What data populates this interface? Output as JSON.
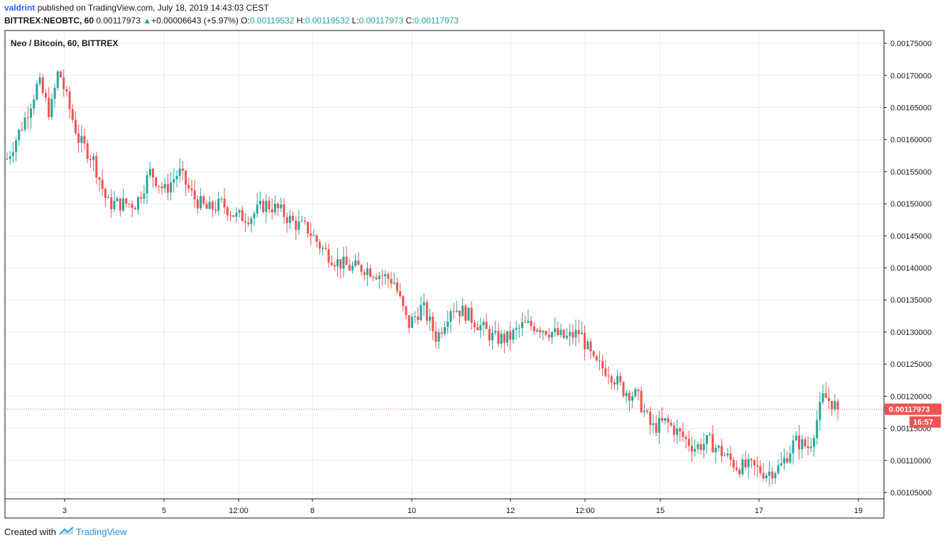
{
  "header": {
    "user": "valdrint",
    "published_text": "published on TradingView.com, July 18, 2019 14:43:03 CEST",
    "symbol": "BITTREX:NEOBTC, 60",
    "last": "0.00117973",
    "arrow": "▲",
    "change": "+0.00006643 (+5.97%)",
    "o_label": "O:",
    "o_value": "0.00119532",
    "h_label": "H:",
    "h_value": "0.00119532",
    "l_label": "L:",
    "l_value": "0.00117973",
    "c_label": "C:",
    "c_value": "0.00117973"
  },
  "footer": {
    "created_with": "Created with",
    "brand": "TradingView"
  },
  "colors": {
    "up": "#26a69a",
    "down": "#ef5350",
    "grid": "#e7eef5",
    "axis": "#131722",
    "price_tag": "#ef5350"
  },
  "chart_data": {
    "type": "candlestick",
    "title": "Neo / Bitcoin, 60, BITTREX",
    "interval": "60",
    "exchange": "BITTREX",
    "ylim": [
      0.00104,
      0.00177
    ],
    "y_ticks": [
      "0.00175000",
      "0.00170000",
      "0.00165000",
      "0.00160000",
      "0.00155000",
      "0.00150000",
      "0.00145000",
      "0.00140000",
      "0.00135000",
      "0.00130000",
      "0.00125000",
      "0.00120000",
      "0.00115000",
      "0.00110000",
      "0.00105000"
    ],
    "x_ticks": [
      "3",
      "5",
      "12:00",
      "8",
      "10",
      "12",
      "12:00",
      "15",
      "17",
      "19"
    ],
    "last_price": "0.00117973",
    "countdown": "16:57",
    "price_path": [
      [
        0,
        0.00157
      ],
      [
        1.2,
        0.00163
      ],
      [
        2.2,
        0.00169
      ],
      [
        3.0,
        0.00164
      ],
      [
        3.6,
        0.00171
      ],
      [
        4.2,
        0.00166
      ],
      [
        5.0,
        0.0016
      ],
      [
        6.0,
        0.00157
      ],
      [
        7.0,
        0.0015
      ],
      [
        8.0,
        0.0015
      ],
      [
        9.0,
        0.0015
      ],
      [
        10.0,
        0.00155
      ],
      [
        11.0,
        0.00152
      ],
      [
        12.0,
        0.00155
      ],
      [
        13.0,
        0.00151
      ],
      [
        14.0,
        0.00149
      ],
      [
        15.0,
        0.0015
      ],
      [
        16.0,
        0.00148
      ],
      [
        17.0,
        0.00148
      ],
      [
        18.0,
        0.0015
      ],
      [
        19.0,
        0.00149
      ],
      [
        20.0,
        0.00147
      ],
      [
        21.0,
        0.00146
      ],
      [
        22.0,
        0.00143
      ],
      [
        23.0,
        0.00141
      ],
      [
        24.0,
        0.0014
      ],
      [
        25.0,
        0.0014
      ],
      [
        26.0,
        0.00139
      ],
      [
        27.0,
        0.00138
      ],
      [
        28.0,
        0.00131
      ],
      [
        29.0,
        0.00134
      ],
      [
        30.0,
        0.00129
      ],
      [
        31.0,
        0.00134
      ],
      [
        32.0,
        0.00133
      ],
      [
        33.0,
        0.00131
      ],
      [
        34.0,
        0.00129
      ],
      [
        35.0,
        0.00129
      ],
      [
        36.0,
        0.00131
      ],
      [
        37.0,
        0.00131
      ],
      [
        38.0,
        0.0013
      ],
      [
        39.0,
        0.00129
      ],
      [
        40.0,
        0.0013
      ],
      [
        41.0,
        0.00125
      ],
      [
        42.0,
        0.00124
      ],
      [
        43.0,
        0.00121
      ],
      [
        44.0,
        0.0012
      ],
      [
        45.0,
        0.00115
      ],
      [
        46.0,
        0.00116
      ],
      [
        47.0,
        0.00114
      ],
      [
        48.0,
        0.00112
      ],
      [
        49.0,
        0.00113
      ],
      [
        50.0,
        0.00111
      ],
      [
        51.0,
        0.00109
      ],
      [
        52.0,
        0.00109
      ],
      [
        53.0,
        0.00108
      ],
      [
        54.0,
        0.00109
      ],
      [
        55.0,
        0.00113
      ],
      [
        56.0,
        0.00112
      ],
      [
        57.0,
        0.0012
      ],
      [
        57.6,
        0.00119
      ],
      [
        58.0,
        0.00118
      ]
    ]
  }
}
